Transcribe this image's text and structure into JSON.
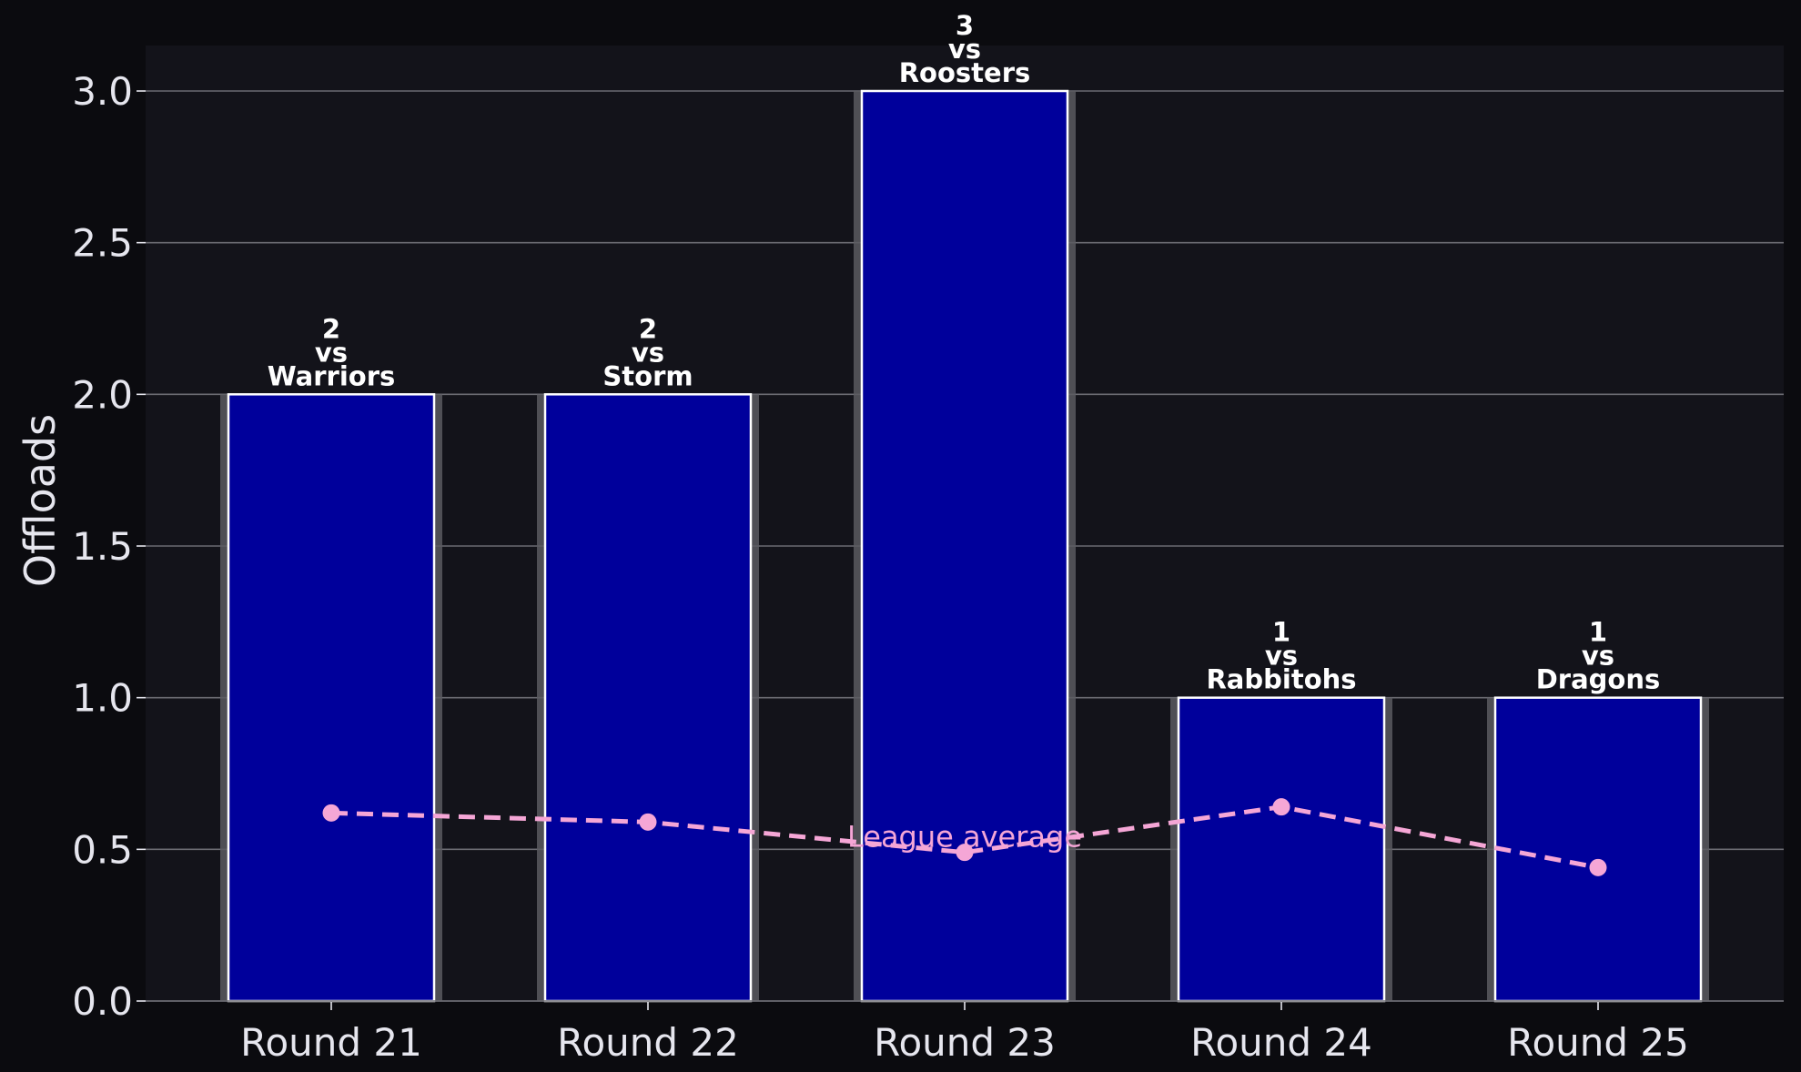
{
  "colors": {
    "page_background": "#0b0b0f",
    "plot_background": "#13131a",
    "grid": "#6b6b72",
    "bar_fill": "#00009b",
    "bar_edge": "#ffffff",
    "bar_shadow": "#5a5a60",
    "average_line": "#f5a6d6",
    "text": "#e6e6ee"
  },
  "chart_data": {
    "type": "bar",
    "categories": [
      "Round 21",
      "Round 22",
      "Round 23",
      "Round 24",
      "Round 25"
    ],
    "values": [
      2,
      2,
      3,
      1,
      1
    ],
    "opponents": [
      "Warriors",
      "Storm",
      "Roosters",
      "Rabbitohs",
      "Dragons"
    ],
    "bar_label_connector": "vs",
    "ylabel": "Offloads",
    "xlabel": "",
    "ylim": [
      0,
      3.15
    ],
    "yticks": [
      0.0,
      0.5,
      1.0,
      1.5,
      2.0,
      2.5,
      3.0
    ],
    "ytick_labels": [
      "0.0",
      "0.5",
      "1.0",
      "1.5",
      "2.0",
      "2.5",
      "3.0"
    ],
    "grid": "y-axis only",
    "overlay_line": {
      "type": "line",
      "style": "dashed with circle markers",
      "label": "League average",
      "values": [
        0.62,
        0.59,
        0.49,
        0.64,
        0.44
      ]
    }
  }
}
